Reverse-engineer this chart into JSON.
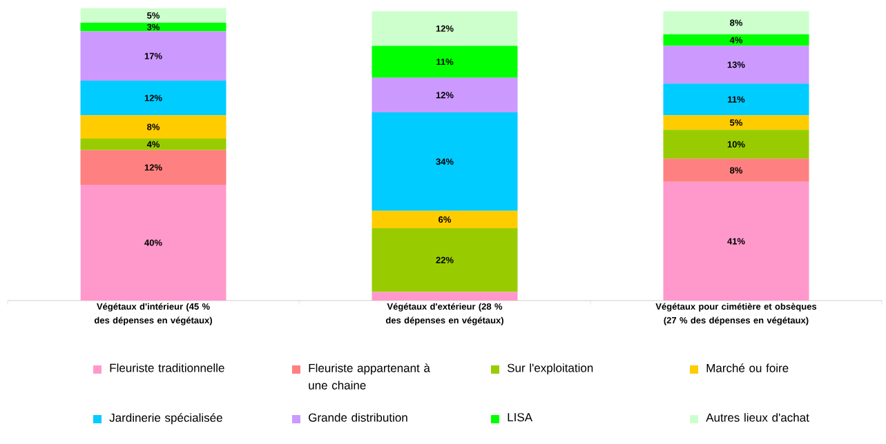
{
  "chart_data": {
    "type": "bar",
    "stacked": true,
    "legend": "bottom",
    "categories": [
      "Végétaux d'intérieur (45 % des dépenses en végétaux)",
      "Végétaux d'extérieur (28 % des dépenses en végétaux)",
      "Végétaux pour cimétière et obsèques (27 % des dépenses en végétaux)"
    ],
    "series": [
      {
        "name": "Fleuriste traditionnelle",
        "color": "#ff99cc",
        "values": [
          40,
          3,
          41
        ],
        "value_labels": [
          "40%",
          null,
          "41%"
        ]
      },
      {
        "name": "Fleuriste appartenant à une chaine",
        "color": "#ff8080",
        "values": [
          12,
          null,
          8
        ],
        "value_labels": [
          "12%",
          null,
          "8%"
        ]
      },
      {
        "name": "Sur l'exploitation",
        "color": "#99cc00",
        "values": [
          4,
          22,
          10
        ],
        "value_labels": [
          "4%",
          "22%",
          "10%"
        ]
      },
      {
        "name": "Marché ou foire",
        "color": "#ffcc00",
        "values": [
          8,
          6,
          5
        ],
        "value_labels": [
          "8%",
          "6%",
          "5%"
        ]
      },
      {
        "name": "Jardinerie spécialisée",
        "color": "#00ccff",
        "values": [
          12,
          34,
          11
        ],
        "value_labels": [
          "12%",
          "34%",
          "11%"
        ]
      },
      {
        "name": "Grande distribution",
        "color": "#cc99ff",
        "values": [
          17,
          12,
          13
        ],
        "value_labels": [
          "17%",
          "12%",
          "13%"
        ]
      },
      {
        "name": "LISA",
        "color": "#00ff00",
        "values": [
          3,
          11,
          4
        ],
        "value_labels": [
          "3%",
          "11%",
          "4%"
        ]
      },
      {
        "name": "Autres lieux d'achat",
        "color": "#ccffcc",
        "values": [
          5,
          12,
          8
        ],
        "value_labels": [
          "5%",
          "12%",
          "8%"
        ]
      }
    ]
  }
}
